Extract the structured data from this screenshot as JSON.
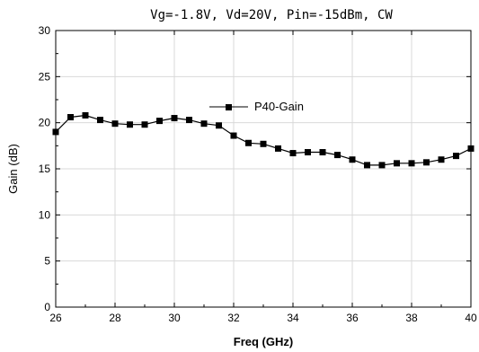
{
  "chart_data": {
    "type": "line",
    "title": "Vg=-1.8V, Vd=20V, Pin=-15dBm, CW",
    "xlabel": "Freq (GHz)",
    "ylabel": "Gain (dB)",
    "xlim": [
      26,
      40
    ],
    "ylim": [
      0,
      30
    ],
    "xticks": [
      26,
      28,
      30,
      32,
      34,
      36,
      38,
      40
    ],
    "yticks": [
      0,
      5,
      10,
      15,
      20,
      25,
      30
    ],
    "grid": true,
    "legend_position": "upper-center",
    "series": [
      {
        "name": "P40-Gain",
        "color": "#000000",
        "marker": "square",
        "x": [
          26.0,
          26.5,
          27.0,
          27.5,
          28.0,
          28.5,
          29.0,
          29.5,
          30.0,
          30.5,
          31.0,
          31.5,
          32.0,
          32.5,
          33.0,
          33.5,
          34.0,
          34.5,
          35.0,
          35.5,
          36.0,
          36.5,
          37.0,
          37.5,
          38.0,
          38.5,
          39.0,
          39.5,
          40.0
        ],
        "y": [
          19.0,
          20.6,
          20.8,
          20.3,
          19.9,
          19.8,
          19.8,
          20.2,
          20.5,
          20.3,
          19.9,
          19.7,
          18.6,
          17.8,
          17.7,
          17.2,
          16.7,
          16.8,
          16.8,
          16.5,
          16.0,
          15.4,
          15.4,
          15.6,
          15.6,
          15.7,
          16.0,
          16.4,
          17.2
        ]
      }
    ]
  }
}
